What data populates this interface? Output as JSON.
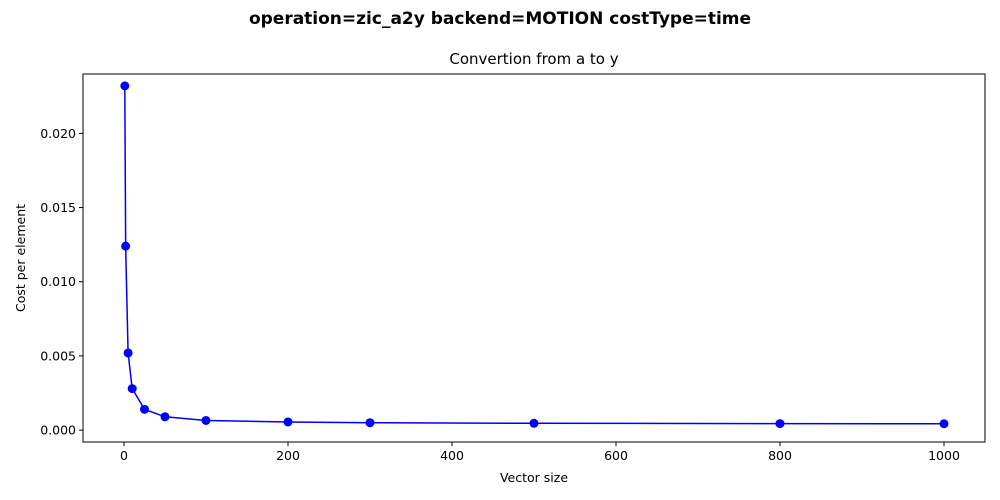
{
  "figure": {
    "suptitle": "operation=zic_a2y backend=MOTION costType=time"
  },
  "chart_data": {
    "type": "line",
    "title": "Convertion from a to y",
    "xlabel": "Vector size",
    "ylabel": "Cost per element",
    "xlim": [
      -50,
      1050
    ],
    "ylim": [
      -0.0008,
      0.024
    ],
    "xticks": [
      0,
      200,
      400,
      600,
      800,
      1000
    ],
    "xtick_labels": [
      "0",
      "200",
      "400",
      "600",
      "800",
      "1000"
    ],
    "yticks": [
      0.0,
      0.005,
      0.01,
      0.015,
      0.02
    ],
    "ytick_labels": [
      "0.000",
      "0.005",
      "0.010",
      "0.015",
      "0.020"
    ],
    "grid": false,
    "color": "#0000ff",
    "marker": "circle",
    "x": [
      1,
      2,
      5,
      10,
      25,
      50,
      100,
      200,
      300,
      500,
      800,
      1000
    ],
    "y": [
      0.0232,
      0.0124,
      0.0052,
      0.0028,
      0.0014,
      0.0009,
      0.00065,
      0.00055,
      0.0005,
      0.00046,
      0.00044,
      0.00043
    ]
  }
}
